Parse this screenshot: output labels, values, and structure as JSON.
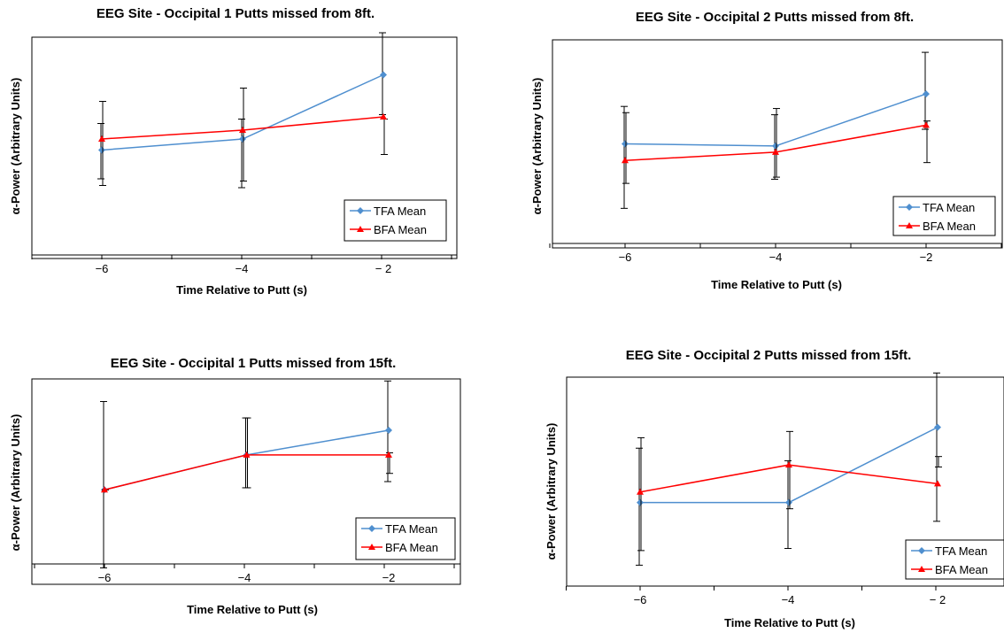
{
  "colors": {
    "tfa": "#4f8fcf",
    "bfa": "#ff0000",
    "axis": "#000000",
    "errorbar": "#000000"
  },
  "chart_data": [
    {
      "type": "line",
      "title": "EEG Site - Occipital 1 Putts missed from 8ft.",
      "xlabel": "Time Relative to Putt (s)",
      "ylabel": "α-Power (Arbitrary  Units)",
      "x": [
        -6,
        -4,
        -2
      ],
      "x_ticks": [
        "−6",
        "−4",
        "− 2"
      ],
      "xlim": [
        -7,
        -1.3
      ],
      "ylim": [
        0,
        10
      ],
      "legend_position": "bottom-right",
      "series": [
        {
          "name": "TFA Mean",
          "values": [
            4.9,
            5.4,
            8.3
          ],
          "err_low": [
            6.1,
            6.3,
            6.5
          ],
          "err_high": [
            3.6,
            3.2,
            10.2
          ]
        },
        {
          "name": "BFA Mean",
          "values": [
            5.4,
            5.8,
            6.4
          ],
          "err_low": [
            3.3,
            3.5,
            4.7
          ],
          "err_high": [
            7.1,
            7.7,
            6.3
          ]
        }
      ]
    },
    {
      "type": "line",
      "title": "EEG Site - Occipital 2 Putts missed from 8ft.",
      "xlabel": "Time Relative to Putt (s)",
      "ylabel": "α-Power (Arbitrary  Units)",
      "x": [
        -6,
        -4,
        -2
      ],
      "x_ticks": [
        "−6",
        "−4",
        "−2"
      ],
      "xlim": [
        -7,
        -0.7
      ],
      "ylim": [
        0,
        10
      ],
      "legend_position": "bottom-right",
      "series": [
        {
          "name": "TFA Mean",
          "values": [
            5.0,
            4.9,
            7.4
          ],
          "err_low": [
            1.9,
            3.3,
            5.7
          ],
          "err_high": [
            6.8,
            6.4,
            9.4
          ]
        },
        {
          "name": "BFA Mean",
          "values": [
            4.2,
            4.6,
            5.9
          ],
          "err_low": [
            3.1,
            3.4,
            4.1
          ],
          "err_high": [
            6.5,
            6.7,
            6.1
          ]
        }
      ]
    },
    {
      "type": "line",
      "title": "EEG Site - Occipital 1 Putts missed from 15ft.",
      "xlabel": "Time Relative to Putt (s)",
      "ylabel": "α-Power (Arbitrary  Units)",
      "x": [
        -6,
        -4,
        -2
      ],
      "x_ticks": [
        "−6",
        "−4",
        "−2"
      ],
      "xlim": [
        -7,
        -1.1
      ],
      "ylim": [
        -1,
        9
      ],
      "legend_position": "bottom-right",
      "series": [
        {
          "name": "TFA Mean",
          "values": [
            3.6,
            5.3,
            6.5
          ],
          "err_low": [
            -0.2,
            3.7,
            4.0
          ],
          "err_high": [
            7.9,
            7.1,
            8.9
          ]
        },
        {
          "name": "BFA Mean",
          "values": [
            3.6,
            5.3,
            5.3
          ],
          "err_low": [
            3.6,
            3.7,
            4.4
          ],
          "err_high": [
            3.6,
            7.1,
            5.4
          ]
        }
      ]
    },
    {
      "type": "line",
      "title": "EEG Site - Occipital 2 Putts missed from 15ft.",
      "xlabel": "Time Relative to Putt (s)",
      "ylabel": "α-Power (Arbitrary  Units)",
      "x": [
        -6,
        -4,
        -2
      ],
      "x_ticks": [
        "−6",
        "−4",
        "− 2"
      ],
      "xlim": [
        -7,
        -1
      ],
      "ylim": [
        0,
        10
      ],
      "legend_position": "bottom-right",
      "series": [
        {
          "name": "TFA Mean",
          "values": [
            4.0,
            4.0,
            7.6
          ],
          "err_low": [
            1.0,
            1.8,
            3.1
          ],
          "err_high": [
            6.6,
            6.0,
            10.2
          ]
        },
        {
          "name": "BFA Mean",
          "values": [
            4.5,
            5.8,
            4.9
          ],
          "err_low": [
            1.7,
            3.7,
            5.7
          ],
          "err_high": [
            7.1,
            7.4,
            6.2
          ]
        }
      ]
    }
  ]
}
